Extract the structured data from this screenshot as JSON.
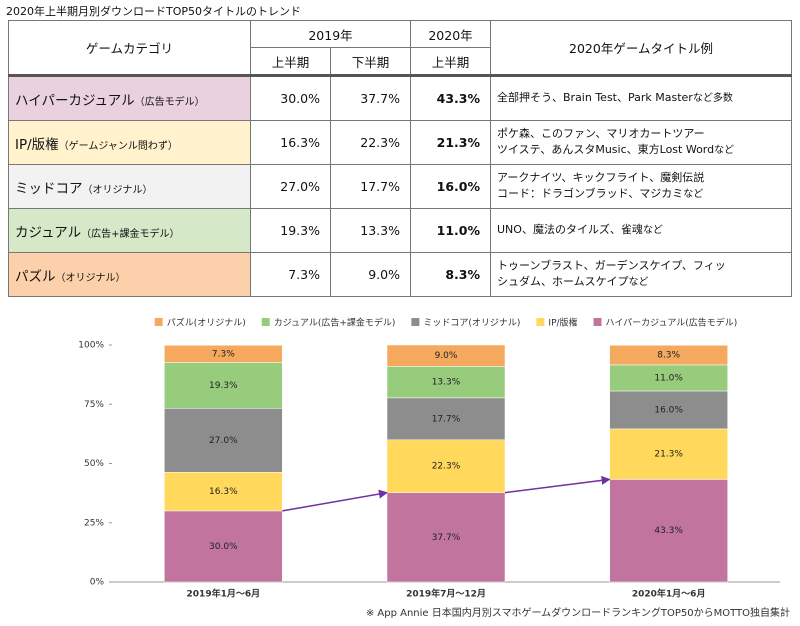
{
  "title": "2020年上半期月別ダウンロードTOP50タイトルのトレンド",
  "table": {
    "header": {
      "category": "ゲームカテゴリ",
      "year2019": "2019年",
      "year2020": "2020年",
      "h1": "上半期",
      "h2": "下半期",
      "h1_2020": "上半期",
      "examples": "2020年ゲームタイトル例"
    },
    "rows": [
      {
        "category": "ハイパーカジュアル",
        "category_note": "（広告モデル）",
        "values": [
          "30.0%",
          "37.7%",
          "43.3%"
        ],
        "examples": [
          "全部押そう、Brain Test、Park Master"
        ],
        "examples_note": "など多数",
        "color": "#ead1e0"
      },
      {
        "category": "IP/版権",
        "category_note": "（ゲームジャンル問わず）",
        "values": [
          "16.3%",
          "22.3%",
          "21.3%"
        ],
        "examples": [
          "ポケ森、このファン、マリオカートツアー",
          "ツイステ、あんスタMusic、東方Lost Word"
        ],
        "examples_note": "など",
        "color": "#fff2cc"
      },
      {
        "category": "ミッドコア",
        "category_note": "（オリジナル）",
        "values": [
          "27.0%",
          "17.7%",
          "16.0%"
        ],
        "examples": [
          "アークナイツ、キックフライト、魔剣伝説",
          "コード：ドラゴンブラッド、マジカミ"
        ],
        "examples_note": "など",
        "color": "#f2f2f2"
      },
      {
        "category": "カジュアル",
        "category_note": "（広告+課金モデル）",
        "values": [
          "19.3%",
          "13.3%",
          "11.0%"
        ],
        "examples": [
          "UNO、魔法のタイルズ、雀魂"
        ],
        "examples_note": "など",
        "color": "#d5e8c8"
      },
      {
        "category": "パズル",
        "category_note": "（オリジナル）",
        "values": [
          "7.3%",
          "9.0%",
          "8.3%"
        ],
        "examples": [
          "トゥーンブラスト、ガーデンスケイプ、フィッ",
          "シュダム、ホームスケイプ"
        ],
        "examples_note": "など",
        "color": "#fbd0aa"
      }
    ]
  },
  "chart_data": {
    "type": "stacked_bar",
    "categories": [
      "2019年1月～6月",
      "2019年7月～12月",
      "2020年1月～6月"
    ],
    "series": [
      {
        "name": "パズル(オリジナル)",
        "color": "#f5a95f",
        "values": [
          7.3,
          9.0,
          8.3
        ],
        "value_labels": [
          "7.3%",
          "9.0%",
          "8.3%"
        ]
      },
      {
        "name": "カジュアル(広告+課金モデル)",
        "color": "#98cc7d",
        "values": [
          19.3,
          13.3,
          11.0
        ],
        "value_labels": [
          "19.3%",
          "13.3%",
          "11.0%"
        ]
      },
      {
        "name": "ミッドコア(オリジナル)",
        "color": "#8d8d8d",
        "values": [
          27.0,
          17.7,
          16.0
        ],
        "value_labels": [
          "27.0%",
          "17.7%",
          "16.0%"
        ]
      },
      {
        "name": "IP/版権",
        "color": "#ffd85c",
        "values": [
          16.3,
          22.3,
          21.3
        ],
        "value_labels": [
          "16.3%",
          "22.3%",
          "21.3%"
        ]
      },
      {
        "name": "ハイパーカジュアル(広告モデル)",
        "color": "#c1749e",
        "values": [
          30.0,
          37.7,
          43.3
        ],
        "value_labels": [
          "30.0%",
          "37.7%",
          "43.3%"
        ]
      }
    ],
    "ylim": [
      0,
      100
    ],
    "yticks": [
      {
        "value": 0,
        "label": "0%"
      },
      {
        "value": 25,
        "label": "25%"
      },
      {
        "value": 50,
        "label": "50%"
      },
      {
        "value": 75,
        "label": "75%"
      },
      {
        "value": 100,
        "label": "100%"
      }
    ],
    "legend": "top"
  },
  "footnote": "※ App Annie 日本国内月別スマホゲームダウンロードランキングTOP50からMOTTO独自集計"
}
